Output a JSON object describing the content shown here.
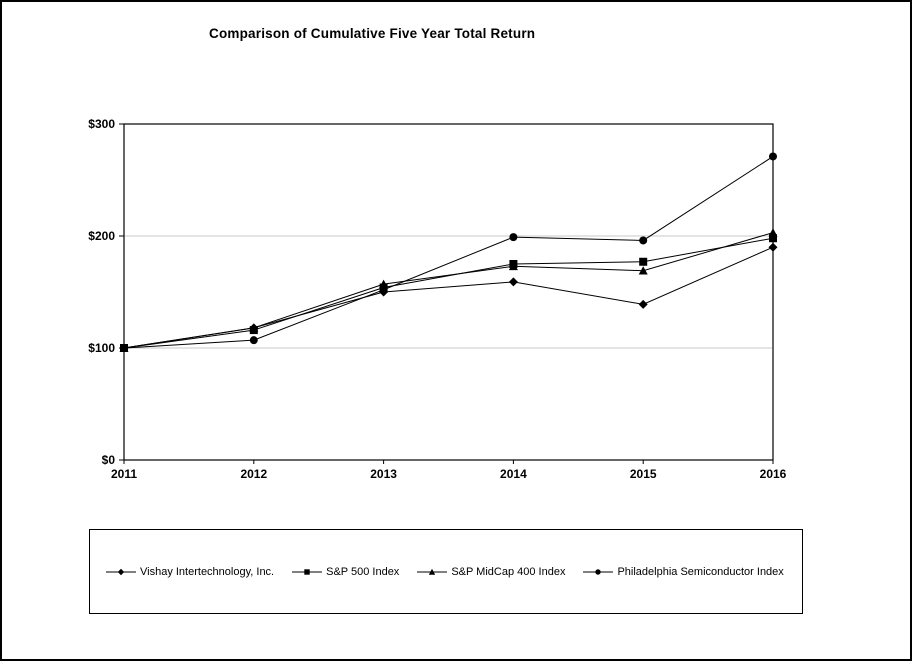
{
  "page": {
    "title": "Comparison of Cumulative Five Year Total Return"
  },
  "chart_data": {
    "type": "line",
    "title": "Comparison of Cumulative Five Year Total Return",
    "categories": [
      "2011",
      "2012",
      "2013",
      "2014",
      "2015",
      "2016"
    ],
    "series": [
      {
        "name": "Vishay Intertechnology, Inc.",
        "marker": "diamond",
        "values": [
          100,
          118,
          150,
          159,
          139,
          190
        ]
      },
      {
        "name": "S&P 500 Index",
        "marker": "square",
        "values": [
          100,
          116,
          154,
          175,
          177,
          198
        ]
      },
      {
        "name": "S&P MidCap 400 Index",
        "marker": "triangle",
        "values": [
          100,
          118,
          157,
          173,
          169,
          203
        ]
      },
      {
        "name": "Philadelphia Semiconductor Index",
        "marker": "circle",
        "values": [
          100,
          107,
          152,
          199,
          196,
          271
        ]
      }
    ],
    "xlabel": "",
    "ylabel": "",
    "y_ticks": [
      "$0",
      "$100",
      "$200",
      "$300"
    ],
    "y_tick_values": [
      0,
      100,
      200,
      300
    ],
    "ylim": [
      0,
      300
    ],
    "grid_values": [
      100,
      200
    ],
    "grid_on": true,
    "legend_position": "bottom",
    "colors": {
      "line": "#000000",
      "marker": "#000000",
      "grid": "#c9c9c9",
      "frame": "#000000",
      "background": "#ffffff"
    }
  }
}
